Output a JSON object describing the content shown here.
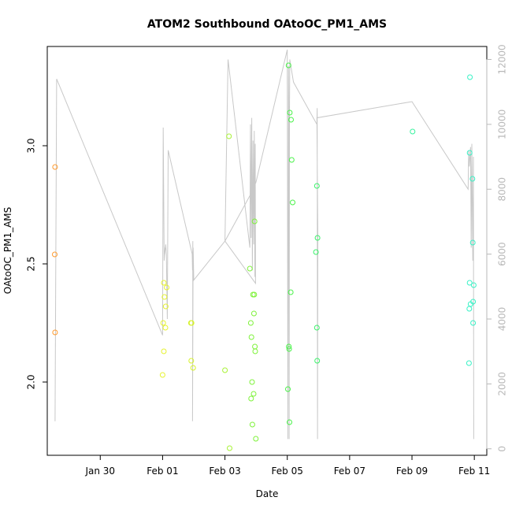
{
  "chart_data": {
    "type": "scatter",
    "title": "ATOM2 Southbound OAtoOC_PM1_AMS",
    "xlabel": "Date",
    "ylabel": "OAtoOC_PM1_AMS",
    "x_unit": "days since Jan 28 00:00",
    "xlim": [
      28.3,
      42.4
    ],
    "ylim": [
      1.69,
      3.42
    ],
    "y2lim": [
      -200,
      12400
    ],
    "x_ticks": [
      {
        "label": "Jan 30",
        "value": 30
      },
      {
        "label": "Feb 01",
        "value": 32
      },
      {
        "label": "Feb 03",
        "value": 34
      },
      {
        "label": "Feb 05",
        "value": 36
      },
      {
        "label": "Feb 07",
        "value": 38
      },
      {
        "label": "Feb 09",
        "value": 40
      },
      {
        "label": "Feb 11",
        "value": 42
      }
    ],
    "y_ticks": [
      {
        "label": "2.0",
        "value": 2.0
      },
      {
        "label": "2.5",
        "value": 2.5
      },
      {
        "label": "3.0",
        "value": 3.0
      }
    ],
    "y2_ticks": [
      {
        "label": "0",
        "value": 0
      },
      {
        "label": "2000",
        "value": 2000
      },
      {
        "label": "4000",
        "value": 4000
      },
      {
        "label": "6000",
        "value": 6000
      },
      {
        "label": "8000",
        "value": 8000
      },
      {
        "label": "10000",
        "value": 10000
      },
      {
        "label": "12000",
        "value": 12000
      }
    ],
    "series": [
      {
        "kind": "points",
        "axis": "left",
        "marker": "open-circle",
        "points": [
          {
            "x": 28.55,
            "y": 2.91,
            "color": "#ff9a2e"
          },
          {
            "x": 28.54,
            "y": 2.54,
            "color": "#ff9a2e"
          },
          {
            "x": 28.55,
            "y": 2.21,
            "color": "#ff9a2e"
          },
          {
            "x": 32.0,
            "y": 2.03,
            "color": "#e6f230"
          },
          {
            "x": 32.04,
            "y": 2.13,
            "color": "#e6f230"
          },
          {
            "x": 32.02,
            "y": 2.25,
            "color": "#e6f230"
          },
          {
            "x": 32.09,
            "y": 2.23,
            "color": "#e6f230"
          },
          {
            "x": 32.06,
            "y": 2.36,
            "color": "#e6f230"
          },
          {
            "x": 32.1,
            "y": 2.32,
            "color": "#e6f230"
          },
          {
            "x": 32.04,
            "y": 2.42,
            "color": "#e6f230"
          },
          {
            "x": 32.13,
            "y": 2.4,
            "color": "#e6f230"
          },
          {
            "x": 32.91,
            "y": 2.25,
            "color": "#d6f22a"
          },
          {
            "x": 32.93,
            "y": 2.25,
            "color": "#d6f22a"
          },
          {
            "x": 32.92,
            "y": 2.09,
            "color": "#d6f22a"
          },
          {
            "x": 32.98,
            "y": 2.06,
            "color": "#d6f22a"
          },
          {
            "x": 34.0,
            "y": 2.05,
            "color": "#a8f236"
          },
          {
            "x": 34.13,
            "y": 3.04,
            "color": "#a8f236"
          },
          {
            "x": 34.15,
            "y": 1.72,
            "color": "#a8f236"
          },
          {
            "x": 34.8,
            "y": 2.48,
            "color": "#7ef23a"
          },
          {
            "x": 34.83,
            "y": 2.25,
            "color": "#7ef23a"
          },
          {
            "x": 34.85,
            "y": 2.19,
            "color": "#7ef23a"
          },
          {
            "x": 34.84,
            "y": 1.93,
            "color": "#7ef23a"
          },
          {
            "x": 34.87,
            "y": 2.0,
            "color": "#7ef23a"
          },
          {
            "x": 34.9,
            "y": 2.37,
            "color": "#7ef23a"
          },
          {
            "x": 34.94,
            "y": 2.37,
            "color": "#7ef23a"
          },
          {
            "x": 34.93,
            "y": 2.29,
            "color": "#7ef23a"
          },
          {
            "x": 34.96,
            "y": 2.15,
            "color": "#7ef23a"
          },
          {
            "x": 34.97,
            "y": 2.13,
            "color": "#7ef23a"
          },
          {
            "x": 34.92,
            "y": 1.95,
            "color": "#7ef23a"
          },
          {
            "x": 34.88,
            "y": 1.82,
            "color": "#7ef23a"
          },
          {
            "x": 34.99,
            "y": 1.76,
            "color": "#7ef23a"
          },
          {
            "x": 34.95,
            "y": 2.68,
            "color": "#7ef23a"
          },
          {
            "x": 36.04,
            "y": 3.34,
            "color": "#4af24a"
          },
          {
            "x": 36.08,
            "y": 3.14,
            "color": "#4af24a"
          },
          {
            "x": 36.12,
            "y": 3.11,
            "color": "#4af24a"
          },
          {
            "x": 36.14,
            "y": 2.94,
            "color": "#4af24a"
          },
          {
            "x": 36.17,
            "y": 2.76,
            "color": "#4af24a"
          },
          {
            "x": 36.11,
            "y": 2.38,
            "color": "#4af24a"
          },
          {
            "x": 36.05,
            "y": 2.15,
            "color": "#4af24a"
          },
          {
            "x": 36.06,
            "y": 2.14,
            "color": "#4af24a"
          },
          {
            "x": 36.02,
            "y": 1.97,
            "color": "#4af24a"
          },
          {
            "x": 36.07,
            "y": 1.83,
            "color": "#4af24a"
          },
          {
            "x": 36.95,
            "y": 2.83,
            "color": "#3af26a"
          },
          {
            "x": 36.97,
            "y": 2.61,
            "color": "#3af26a"
          },
          {
            "x": 36.92,
            "y": 2.55,
            "color": "#3af26a"
          },
          {
            "x": 36.95,
            "y": 2.23,
            "color": "#3af26a"
          },
          {
            "x": 36.96,
            "y": 2.09,
            "color": "#3af26a"
          },
          {
            "x": 40.02,
            "y": 3.06,
            "color": "#38f29e"
          },
          {
            "x": 41.86,
            "y": 3.29,
            "color": "#38f2c6"
          },
          {
            "x": 41.85,
            "y": 2.97,
            "color": "#38f2c6"
          },
          {
            "x": 41.94,
            "y": 2.86,
            "color": "#38f2c6"
          },
          {
            "x": 41.95,
            "y": 2.59,
            "color": "#38f2c6"
          },
          {
            "x": 41.85,
            "y": 2.42,
            "color": "#38f2c6"
          },
          {
            "x": 41.98,
            "y": 2.41,
            "color": "#38f2c6"
          },
          {
            "x": 41.96,
            "y": 2.34,
            "color": "#38f2c6"
          },
          {
            "x": 41.88,
            "y": 2.33,
            "color": "#38f2c6"
          },
          {
            "x": 41.84,
            "y": 2.31,
            "color": "#38f2c6"
          },
          {
            "x": 41.96,
            "y": 2.25,
            "color": "#38f2c6"
          },
          {
            "x": 41.83,
            "y": 2.08,
            "color": "#38f2c6"
          }
        ]
      },
      {
        "kind": "line",
        "axis": "right",
        "color": "#c8c8c8",
        "points": [
          [
            28.55,
            850
          ],
          [
            28.6,
            11400
          ],
          [
            32.0,
            3500
          ],
          [
            32.02,
            9900
          ],
          [
            32.05,
            5800
          ],
          [
            32.08,
            6200
          ],
          [
            32.07,
            6000
          ],
          [
            32.1,
            6300
          ],
          [
            32.12,
            6000
          ],
          [
            32.15,
            4000
          ],
          [
            32.18,
            9200
          ],
          [
            32.95,
            6000
          ],
          [
            32.96,
            5500
          ],
          [
            32.97,
            6400
          ],
          [
            32.96,
            850
          ],
          [
            32.98,
            6200
          ],
          [
            33.0,
            5200
          ],
          [
            34.0,
            6400
          ],
          [
            34.1,
            12000
          ],
          [
            34.8,
            6200
          ],
          [
            34.82,
            10000
          ],
          [
            34.84,
            6500
          ],
          [
            34.86,
            10200
          ],
          [
            34.88,
            5500
          ],
          [
            34.9,
            9500
          ],
          [
            34.92,
            6300
          ],
          [
            34.94,
            9800
          ],
          [
            34.96,
            5300
          ],
          [
            34.97,
            9400
          ],
          [
            34.98,
            5100
          ],
          [
            34.0,
            6400
          ],
          [
            34.8,
            7800
          ],
          [
            34.99,
            8200
          ],
          [
            36.0,
            12300
          ],
          [
            36.02,
            300
          ],
          [
            36.04,
            11800
          ],
          [
            36.05,
            9800
          ],
          [
            36.06,
            300
          ],
          [
            36.07,
            10300
          ],
          [
            36.08,
            12000
          ],
          [
            36.2,
            11300
          ],
          [
            36.95,
            10000
          ],
          [
            36.96,
            10500
          ],
          [
            36.97,
            300
          ],
          [
            36.98,
            6600
          ],
          [
            36.95,
            10200
          ],
          [
            40.0,
            10700
          ],
          [
            41.8,
            8000
          ],
          [
            41.82,
            9200
          ],
          [
            41.84,
            8700
          ],
          [
            41.88,
            9300
          ],
          [
            41.9,
            6200
          ],
          [
            41.92,
            9400
          ],
          [
            41.95,
            5800
          ],
          [
            41.97,
            9000
          ],
          [
            41.98,
            300
          ]
        ]
      }
    ]
  }
}
